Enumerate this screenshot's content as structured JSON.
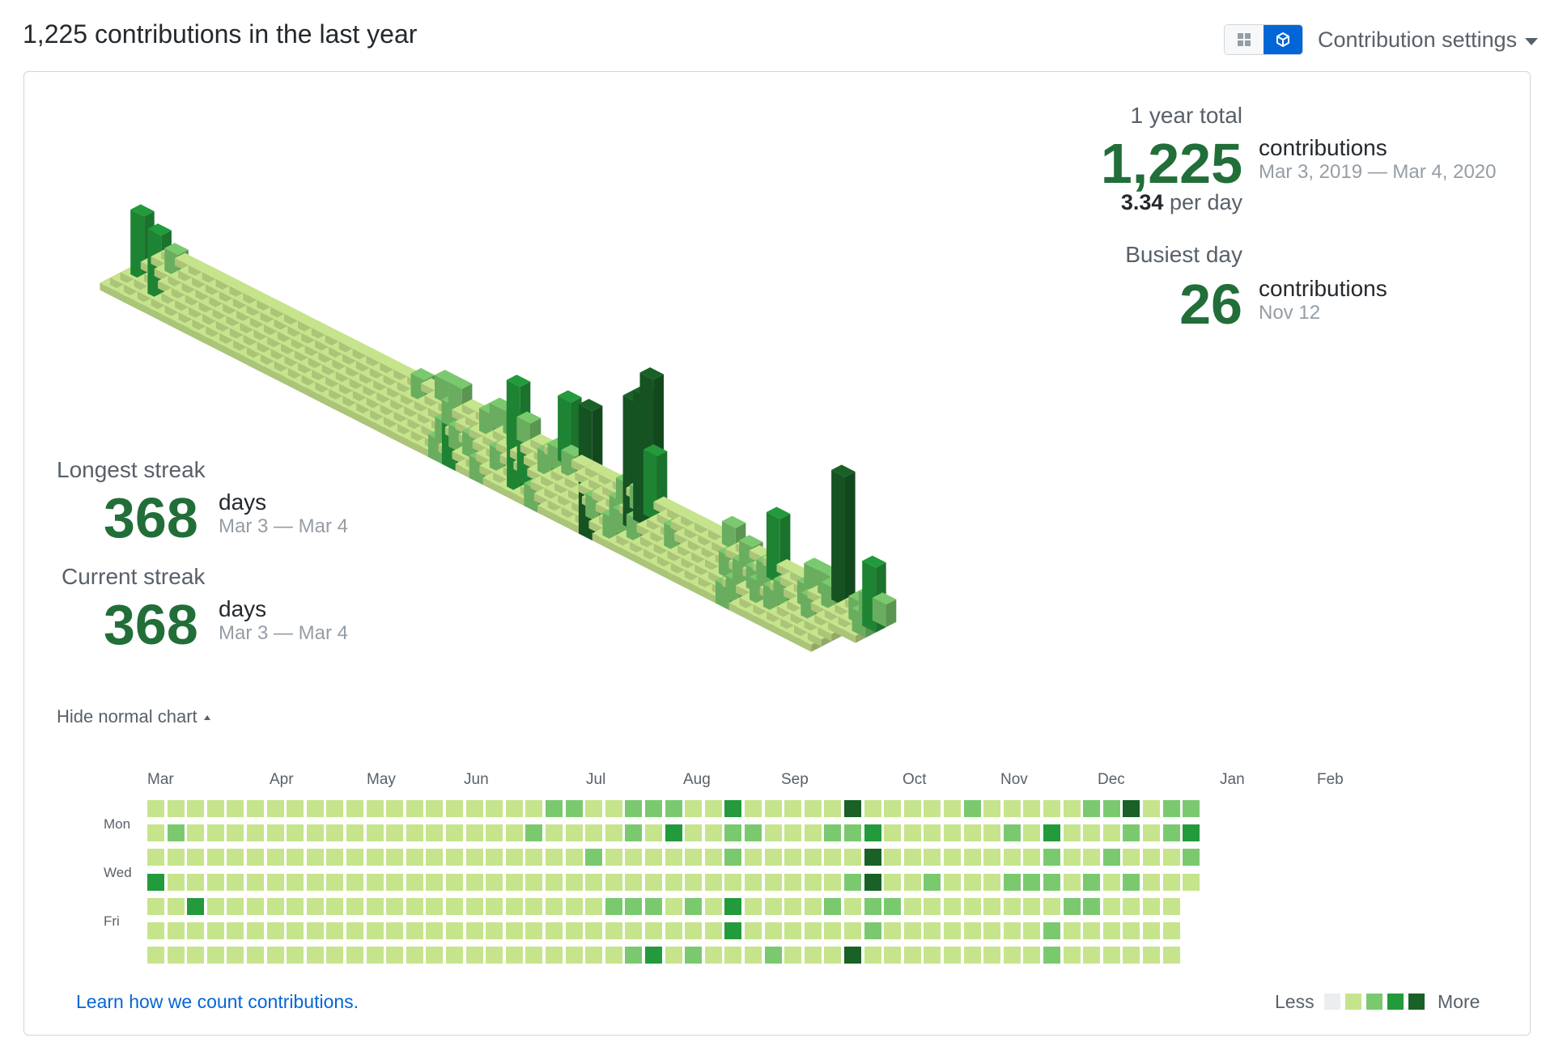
{
  "header": {
    "title": "1,225 contributions in the last year"
  },
  "toggle": {
    "grid_icon": "grid-icon",
    "cube_icon": "cube-icon"
  },
  "settings": {
    "label": "Contribution settings"
  },
  "stats": {
    "year_total_label": "1 year total",
    "year_total_value": "1,225",
    "year_total_unit": "contributions",
    "year_total_range": "Mar 3, 2019 — Mar 4, 2020",
    "per_day_value": "3.34",
    "per_day_unit": "per day",
    "busiest_label": "Busiest day",
    "busiest_value": "26",
    "busiest_unit": "contributions",
    "busiest_date": "Nov 12",
    "longest_label": "Longest streak",
    "longest_value": "368",
    "longest_unit": "days",
    "longest_range": "Mar 3 — Mar 4",
    "current_label": "Current streak",
    "current_value": "368",
    "current_unit": "days",
    "current_range": "Mar 3 — Mar 4"
  },
  "hide_chart": {
    "label": "Hide normal chart"
  },
  "months": [
    "Mar",
    "Apr",
    "May",
    "Jun",
    "Jul",
    "Aug",
    "Sep",
    "Oct",
    "Nov",
    "Dec",
    "Jan",
    "Feb"
  ],
  "day_labels": {
    "mon": "Mon",
    "wed": "Wed",
    "fri": "Fri"
  },
  "footer": {
    "learn_link": "Learn how we count contributions.",
    "less": "Less",
    "more": "More"
  },
  "colors": {
    "level0": "#ebedf0",
    "level1": "#c6e48b",
    "level2": "#7bc96f",
    "level3": "#239a3b",
    "level4": "#196127",
    "accent": "#0366d6",
    "number": "#216e39"
  },
  "chart_data": {
    "type": "heatmap",
    "weeks": 53,
    "days_per_week": 7,
    "levels": [
      [
        1,
        1,
        1,
        1,
        1,
        1,
        1,
        1,
        1,
        1,
        1,
        1,
        1,
        1,
        1,
        1,
        1,
        1,
        1,
        1,
        2,
        2,
        1,
        1,
        2,
        2,
        2,
        1,
        1,
        3,
        1,
        1,
        1,
        1,
        1,
        4,
        1,
        1,
        1,
        1,
        1,
        2,
        1,
        1,
        1,
        1,
        1,
        2,
        2,
        4,
        1,
        2,
        2
      ],
      [
        1,
        2,
        1,
        1,
        1,
        1,
        1,
        1,
        1,
        1,
        1,
        1,
        1,
        1,
        1,
        1,
        1,
        1,
        1,
        2,
        1,
        1,
        1,
        1,
        2,
        1,
        3,
        1,
        1,
        2,
        2,
        1,
        1,
        1,
        2,
        2,
        3,
        1,
        1,
        1,
        1,
        1,
        1,
        2,
        1,
        3,
        1,
        1,
        1,
        2,
        1,
        2,
        3
      ],
      [
        1,
        1,
        1,
        1,
        1,
        1,
        1,
        1,
        1,
        1,
        1,
        1,
        1,
        1,
        1,
        1,
        1,
        1,
        1,
        1,
        1,
        1,
        2,
        1,
        1,
        1,
        1,
        1,
        1,
        2,
        1,
        1,
        1,
        1,
        1,
        1,
        4,
        1,
        1,
        1,
        1,
        1,
        1,
        1,
        1,
        2,
        1,
        1,
        2,
        1,
        1,
        1,
        2
      ],
      [
        3,
        1,
        1,
        1,
        1,
        1,
        1,
        1,
        1,
        1,
        1,
        1,
        1,
        1,
        1,
        1,
        1,
        1,
        1,
        1,
        1,
        1,
        1,
        1,
        1,
        1,
        1,
        1,
        1,
        1,
        1,
        1,
        1,
        1,
        1,
        2,
        4,
        1,
        1,
        2,
        1,
        1,
        1,
        2,
        2,
        2,
        1,
        2,
        1,
        2,
        1,
        1,
        1
      ],
      [
        1,
        1,
        3,
        1,
        1,
        1,
        1,
        1,
        1,
        1,
        1,
        1,
        1,
        1,
        1,
        1,
        1,
        1,
        1,
        1,
        1,
        1,
        1,
        2,
        2,
        2,
        1,
        2,
        1,
        3,
        1,
        1,
        1,
        1,
        2,
        1,
        2,
        2,
        1,
        1,
        1,
        1,
        1,
        1,
        1,
        1,
        2,
        2,
        1,
        1,
        1,
        1
      ],
      [
        1,
        1,
        1,
        1,
        1,
        1,
        1,
        1,
        1,
        1,
        1,
        1,
        1,
        1,
        1,
        1,
        1,
        1,
        1,
        1,
        1,
        1,
        1,
        1,
        1,
        1,
        1,
        1,
        1,
        3,
        1,
        1,
        1,
        1,
        1,
        1,
        2,
        1,
        1,
        1,
        1,
        1,
        1,
        1,
        1,
        2,
        1,
        1,
        1,
        1,
        1,
        1
      ],
      [
        1,
        1,
        1,
        1,
        1,
        1,
        1,
        1,
        1,
        1,
        1,
        1,
        1,
        1,
        1,
        1,
        1,
        1,
        1,
        1,
        1,
        1,
        1,
        1,
        2,
        3,
        1,
        2,
        1,
        1,
        1,
        2,
        1,
        1,
        1,
        4,
        1,
        1,
        1,
        1,
        1,
        1,
        1,
        1,
        1,
        2,
        1,
        1,
        1,
        1,
        1,
        1
      ]
    ]
  }
}
